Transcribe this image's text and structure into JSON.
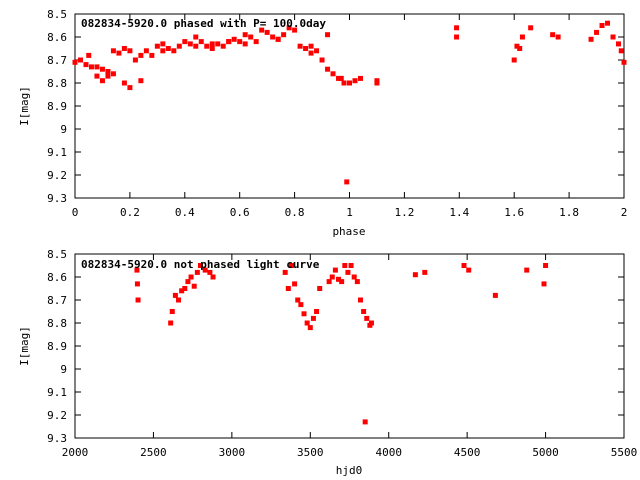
{
  "chart_data": [
    {
      "type": "scatter",
      "title": "082834-5920.0 phased with P= 100.0day",
      "xlabel": "phase",
      "ylabel": "I[mag]",
      "xlim": [
        0,
        2
      ],
      "ylim": [
        8.5,
        9.3
      ],
      "y_inverted": true,
      "grid": false,
      "x_ticks": [
        "0",
        "0.2",
        "0.4",
        "0.6",
        "0.8",
        "1",
        "1.2",
        "1.4",
        "1.6",
        "1.8",
        "2"
      ],
      "y_ticks": [
        "8.5",
        "8.6",
        "8.7",
        "8.8",
        "8.9",
        "9",
        "9.1",
        "9.2",
        "9.3"
      ],
      "color": "#ff0000",
      "series": [
        {
          "x": [
            0.0,
            0.02,
            0.04,
            0.06,
            0.08,
            0.1,
            0.12,
            0.14,
            0.16,
            0.18,
            0.2,
            0.22,
            0.24,
            0.26,
            0.28,
            0.3,
            0.32,
            0.34,
            0.36,
            0.38,
            0.4,
            0.42,
            0.44,
            0.46,
            0.48,
            0.5,
            0.52,
            0.54,
            0.56,
            0.58,
            0.6,
            0.62,
            0.64,
            0.66,
            0.68,
            0.7,
            0.72,
            0.74,
            0.76,
            0.78,
            0.8,
            0.82,
            0.84,
            0.86,
            0.88,
            0.9,
            0.92,
            0.94,
            0.96,
            0.98,
            1.0,
            1.02,
            1.04,
            1.1,
            1.1,
            1.39,
            1.39,
            1.6,
            1.61,
            1.62,
            1.63,
            1.66,
            1.74,
            1.76,
            1.88,
            1.9,
            1.92,
            1.94,
            1.96,
            1.98,
            1.99,
            2.0,
            0.1,
            0.14,
            0.18,
            0.2,
            0.08,
            0.24,
            0.5,
            0.56,
            0.86,
            0.99,
            0.05,
            0.12,
            0.32,
            0.44,
            0.62,
            0.74,
            0.92,
            0.97
          ],
          "y": [
            8.71,
            8.7,
            8.72,
            8.73,
            8.77,
            8.79,
            8.77,
            8.66,
            8.67,
            8.65,
            8.66,
            8.7,
            8.68,
            8.66,
            8.68,
            8.64,
            8.63,
            8.65,
            8.66,
            8.64,
            8.62,
            8.63,
            8.6,
            8.62,
            8.64,
            8.65,
            8.63,
            8.64,
            8.62,
            8.61,
            8.62,
            8.63,
            8.6,
            8.62,
            8.57,
            8.58,
            8.6,
            8.61,
            8.59,
            8.56,
            8.57,
            8.64,
            8.65,
            8.64,
            8.66,
            8.7,
            8.74,
            8.76,
            8.78,
            8.8,
            8.8,
            8.79,
            8.78,
            8.79,
            8.8,
            8.56,
            8.6,
            8.7,
            8.64,
            8.65,
            8.6,
            8.56,
            8.59,
            8.6,
            8.61,
            8.58,
            8.55,
            8.54,
            8.6,
            8.63,
            8.66,
            8.71,
            8.74,
            8.76,
            8.8,
            8.82,
            8.73,
            8.79,
            8.63,
            8.62,
            8.67,
            9.23,
            8.68,
            8.75,
            8.66,
            8.64,
            8.59,
            8.61,
            8.59,
            8.78
          ]
        }
      ]
    },
    {
      "type": "scatter",
      "title": "082834-5920.0 not phased light curve",
      "xlabel": "hjd0",
      "ylabel": "I[mag]",
      "xlim": [
        2000,
        5500
      ],
      "ylim": [
        8.5,
        9.3
      ],
      "y_inverted": true,
      "grid": false,
      "x_ticks": [
        "2000",
        "2500",
        "3000",
        "3500",
        "4000",
        "4500",
        "5000",
        "5500"
      ],
      "y_ticks": [
        "8.5",
        "8.6",
        "8.7",
        "8.8",
        "8.9",
        "9",
        "9.1",
        "9.2",
        "9.3"
      ],
      "color": "#ff0000",
      "series": [
        {
          "x": [
            2395,
            2398,
            2402,
            2610,
            2620,
            2640,
            2660,
            2680,
            2700,
            2720,
            2740,
            2760,
            2780,
            2800,
            2830,
            2860,
            2880,
            3340,
            3360,
            3380,
            3400,
            3420,
            3440,
            3460,
            3480,
            3500,
            3520,
            3540,
            3560,
            3620,
            3640,
            3660,
            3680,
            3700,
            3720,
            3740,
            3760,
            3780,
            3800,
            3820,
            3840,
            3860,
            3880,
            3890,
            3850,
            4170,
            4230,
            4480,
            4510,
            4680,
            4880,
            4990,
            5000
          ],
          "y": [
            8.57,
            8.63,
            8.7,
            8.8,
            8.75,
            8.68,
            8.7,
            8.66,
            8.65,
            8.62,
            8.6,
            8.64,
            8.58,
            8.55,
            8.57,
            8.58,
            8.6,
            8.58,
            8.65,
            8.55,
            8.63,
            8.7,
            8.72,
            8.76,
            8.8,
            8.82,
            8.78,
            8.75,
            8.65,
            8.62,
            8.6,
            8.57,
            8.61,
            8.62,
            8.55,
            8.58,
            8.55,
            8.6,
            8.62,
            8.7,
            8.75,
            8.78,
            8.81,
            8.8,
            9.23,
            8.59,
            8.58,
            8.55,
            8.57,
            8.68,
            8.57,
            8.63,
            8.55
          ]
        }
      ]
    }
  ]
}
